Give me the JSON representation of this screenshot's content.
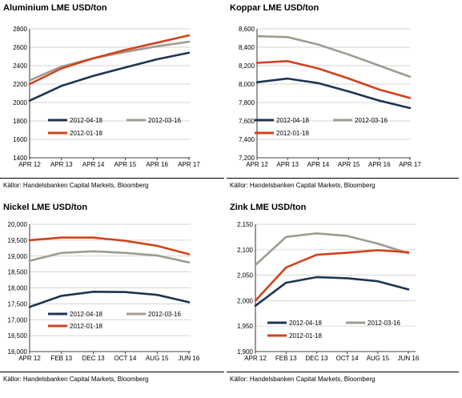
{
  "colors": {
    "2012-04-18": "#1e3553",
    "2012-03-16": "#a09a90",
    "2012-01-18": "#d2421b",
    "grid": "#c8c8c8"
  },
  "chart_data": [
    {
      "type": "line",
      "title": "Aluminium LME USD/ton",
      "source": "Källor: Handelsbanken Capital Markets, Bloomberg",
      "xlabel": "",
      "ylabel": "",
      "x": [
        "APR 12",
        "APR 13",
        "APR 14",
        "APR 15",
        "APR 16",
        "APR 17"
      ],
      "x_ticks": [
        "APR 12",
        "APR 13",
        "APR 14",
        "APR 15",
        "APR 16",
        "APR 17"
      ],
      "ylim": [
        1400,
        2800
      ],
      "y_ticks": [
        "1400",
        "1600",
        "1800",
        "2000",
        "2200",
        "2400",
        "2600",
        "2800"
      ],
      "y_tick_values": [
        1400,
        1600,
        1800,
        2000,
        2200,
        2400,
        2600,
        2800
      ],
      "grid": "horizontal",
      "legend": "bottom",
      "series": [
        {
          "name": "2012-04-18",
          "values": [
            2020,
            2180,
            2290,
            2380,
            2470,
            2540
          ]
        },
        {
          "name": "2012-03-16",
          "values": [
            2240,
            2390,
            2480,
            2550,
            2610,
            2660
          ]
        },
        {
          "name": "2012-01-18",
          "values": [
            2200,
            2370,
            2480,
            2570,
            2650,
            2730
          ]
        }
      ]
    },
    {
      "type": "line",
      "title": "Koppar LME USD/ton",
      "source": "Källor: Handelsbanken Capital Markets, Bloomberg",
      "xlabel": "",
      "ylabel": "",
      "x": [
        "APR 12",
        "APR 13",
        "APR 14",
        "APR 15",
        "APR 16",
        "APR 17"
      ],
      "x_ticks": [
        "APR 12",
        "APR 13",
        "APR 14",
        "APR 15",
        "APR 16",
        "APR 17"
      ],
      "ylim": [
        7200,
        8600
      ],
      "y_ticks": [
        "7,200",
        "7,400",
        "7,600",
        "7,800",
        "8,000",
        "8,200",
        "8,400",
        "8,600"
      ],
      "y_tick_values": [
        7200,
        7400,
        7600,
        7800,
        8000,
        8200,
        8400,
        8600
      ],
      "grid": "horizontal",
      "legend": "bottom",
      "series": [
        {
          "name": "2012-04-18",
          "values": [
            8020,
            8060,
            8010,
            7920,
            7820,
            7740
          ]
        },
        {
          "name": "2012-03-16",
          "values": [
            8520,
            8510,
            8430,
            8320,
            8200,
            8080
          ]
        },
        {
          "name": "2012-01-18",
          "values": [
            8230,
            8250,
            8170,
            8060,
            7940,
            7850
          ]
        }
      ]
    },
    {
      "type": "line",
      "title": "Nickel LME USD/ton",
      "source": "Källor: Handelsbanken Capital Markets, Bloomberg",
      "xlabel": "",
      "ylabel": "",
      "x": [
        "APR 12",
        "FEB 13",
        "DEC 13",
        "OCT 14",
        "AUG 15",
        "JUN 16"
      ],
      "x_ticks": [
        "APR 12",
        "FEB 13",
        "DEC 13",
        "OCT 14",
        "AUG 15",
        "JUN 16"
      ],
      "ylim": [
        16000,
        20000
      ],
      "y_ticks": [
        "16,000",
        "16,500",
        "17,000",
        "17,500",
        "18,000",
        "18,500",
        "19,000",
        "19,500",
        "20,000"
      ],
      "y_tick_values": [
        16000,
        16500,
        17000,
        17500,
        18000,
        18500,
        19000,
        19500,
        20000
      ],
      "grid": "horizontal",
      "legend": "bottom",
      "series": [
        {
          "name": "2012-04-18",
          "values": [
            17400,
            17750,
            17880,
            17870,
            17780,
            17550
          ]
        },
        {
          "name": "2012-03-16",
          "values": [
            18850,
            19100,
            19150,
            19100,
            19020,
            18800
          ]
        },
        {
          "name": "2012-01-18",
          "values": [
            19500,
            19580,
            19580,
            19480,
            19320,
            19060
          ]
        }
      ]
    },
    {
      "type": "line",
      "title": "Zink LME USD/ton",
      "source": "Källor: Handelsbanken Capital Markets, Bloomberg",
      "xlabel": "",
      "ylabel": "",
      "x": [
        "APR 12",
        "FEB 13",
        "DEC 13",
        "OCT 14",
        "AUG 15",
        "JUN 16"
      ],
      "x_ticks": [
        "APR 12",
        "FEB 13",
        "DEC 13",
        "OCT 14",
        "AUG 15",
        "JUN 16"
      ],
      "ylim": [
        1900,
        2150
      ],
      "y_ticks": [
        "1,900",
        "1,950",
        "2,000",
        "2,050",
        "2,100",
        "2,150"
      ],
      "y_tick_values": [
        1900,
        1950,
        2000,
        2050,
        2100,
        2150
      ],
      "grid": "horizontal",
      "legend": "bottom",
      "series": [
        {
          "name": "2012-04-18",
          "values": [
            1990,
            2035,
            2046,
            2044,
            2038,
            2022
          ]
        },
        {
          "name": "2012-03-16",
          "values": [
            2070,
            2125,
            2132,
            2127,
            2112,
            2093
          ]
        },
        {
          "name": "2012-01-18",
          "values": [
            2000,
            2065,
            2090,
            2094,
            2099,
            2095
          ]
        }
      ]
    }
  ]
}
